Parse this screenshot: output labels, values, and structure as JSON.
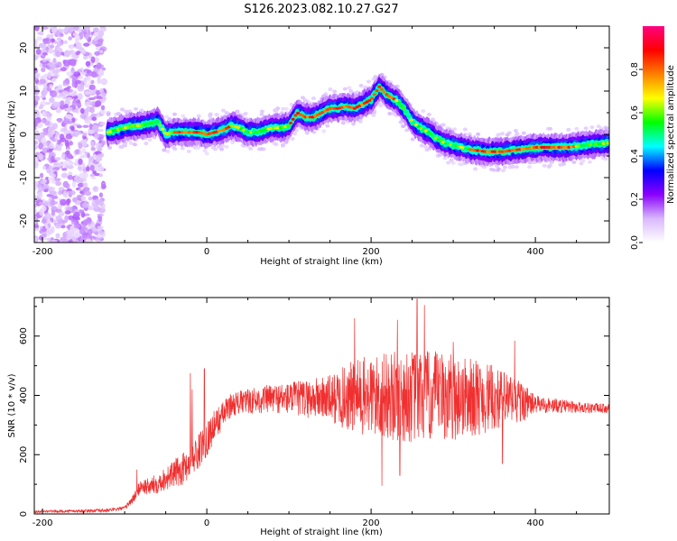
{
  "title": "S126.2023.082.10.27.G27",
  "chart_data": [
    {
      "type": "heatmap",
      "xlabel": "Height of straight line (km)",
      "ylabel": "Frequency (Hz)",
      "xlim": [
        -210,
        490
      ],
      "ylim": [
        -25,
        25
      ],
      "xticks": [
        -200,
        0,
        200,
        400
      ],
      "yticks": [
        -20,
        -10,
        0,
        10,
        20
      ],
      "ridge": {
        "x": [
          -120,
          -110,
          -100,
          -90,
          -80,
          -70,
          -60,
          -50,
          -40,
          -30,
          -20,
          -10,
          0,
          10,
          20,
          30,
          40,
          50,
          60,
          70,
          80,
          90,
          100,
          110,
          120,
          130,
          140,
          150,
          160,
          170,
          180,
          190,
          200,
          210,
          220,
          230,
          240,
          250,
          260,
          270,
          280,
          290,
          300,
          320,
          340,
          360,
          380,
          400,
          420,
          440,
          460,
          490
        ],
        "y": [
          0.5,
          1,
          1.5,
          2,
          2,
          2.5,
          3,
          0,
          0.5,
          0.5,
          0.5,
          0.5,
          0,
          0.5,
          1,
          2,
          1.5,
          0.5,
          0.5,
          1,
          1.5,
          1.5,
          2,
          5,
          4,
          4,
          5,
          6,
          6,
          6.5,
          6,
          7,
          8,
          11,
          9,
          8,
          6,
          3,
          1.5,
          0.5,
          -1,
          -2,
          -2.5,
          -3.5,
          -4,
          -4,
          -3.5,
          -3,
          -3,
          -3,
          -2.5,
          -2
        ]
      },
      "noise_region_x": [
        -210,
        -125
      ],
      "colorbar": {
        "label": "Normalized spectral amplitude",
        "ticks": [
          0.0,
          0.2,
          0.4,
          0.6,
          0.8
        ],
        "range": [
          0,
          1
        ],
        "colors": [
          "#ffffff",
          "#d9b8ff",
          "#8a00ff",
          "#0000ff",
          "#00ffff",
          "#00ff00",
          "#ffff00",
          "#ff7f00",
          "#ff0000",
          "#ff0080"
        ]
      }
    },
    {
      "type": "line",
      "xlabel": "Height of straight line (km)",
      "ylabel": "SNR (10 * v/v)",
      "xlim": [
        -210,
        490
      ],
      "ylim": [
        0,
        730
      ],
      "xticks": [
        -200,
        0,
        200,
        400
      ],
      "yticks": [
        0,
        200,
        400,
        600
      ],
      "color": "#f03030",
      "envelope": {
        "x": [
          -210,
          -150,
          -120,
          -100,
          -90,
          -80,
          -70,
          -50,
          -30,
          -10,
          10,
          30,
          50,
          80,
          100,
          150,
          200,
          250,
          300,
          350,
          380,
          400,
          450,
          490
        ],
        "y": [
          8,
          10,
          12,
          20,
          50,
          95,
          90,
          120,
          150,
          210,
          300,
          370,
          380,
          390,
          390,
          390,
          395,
          395,
          395,
          390,
          380,
          370,
          360,
          355
        ]
      },
      "noise_amplitude": {
        "x": [
          -210,
          -100,
          -80,
          -50,
          -20,
          0,
          30,
          60,
          100,
          150,
          180,
          220,
          260,
          300,
          340,
          380,
          400,
          450,
          490
        ],
        "y": [
          4,
          6,
          25,
          40,
          60,
          60,
          40,
          45,
          55,
          80,
          130,
          150,
          160,
          150,
          120,
          80,
          30,
          20,
          15
        ]
      },
      "spikes": [
        [
          -85,
          150
        ],
        [
          -20,
          475
        ],
        [
          -18,
          420
        ],
        [
          -3,
          490
        ],
        [
          180,
          660
        ],
        [
          232,
          655
        ],
        [
          256,
          725
        ],
        [
          265,
          705
        ],
        [
          235,
          130
        ],
        [
          213,
          95
        ],
        [
          300,
          580
        ],
        [
          375,
          585
        ],
        [
          360,
          170
        ]
      ]
    }
  ]
}
